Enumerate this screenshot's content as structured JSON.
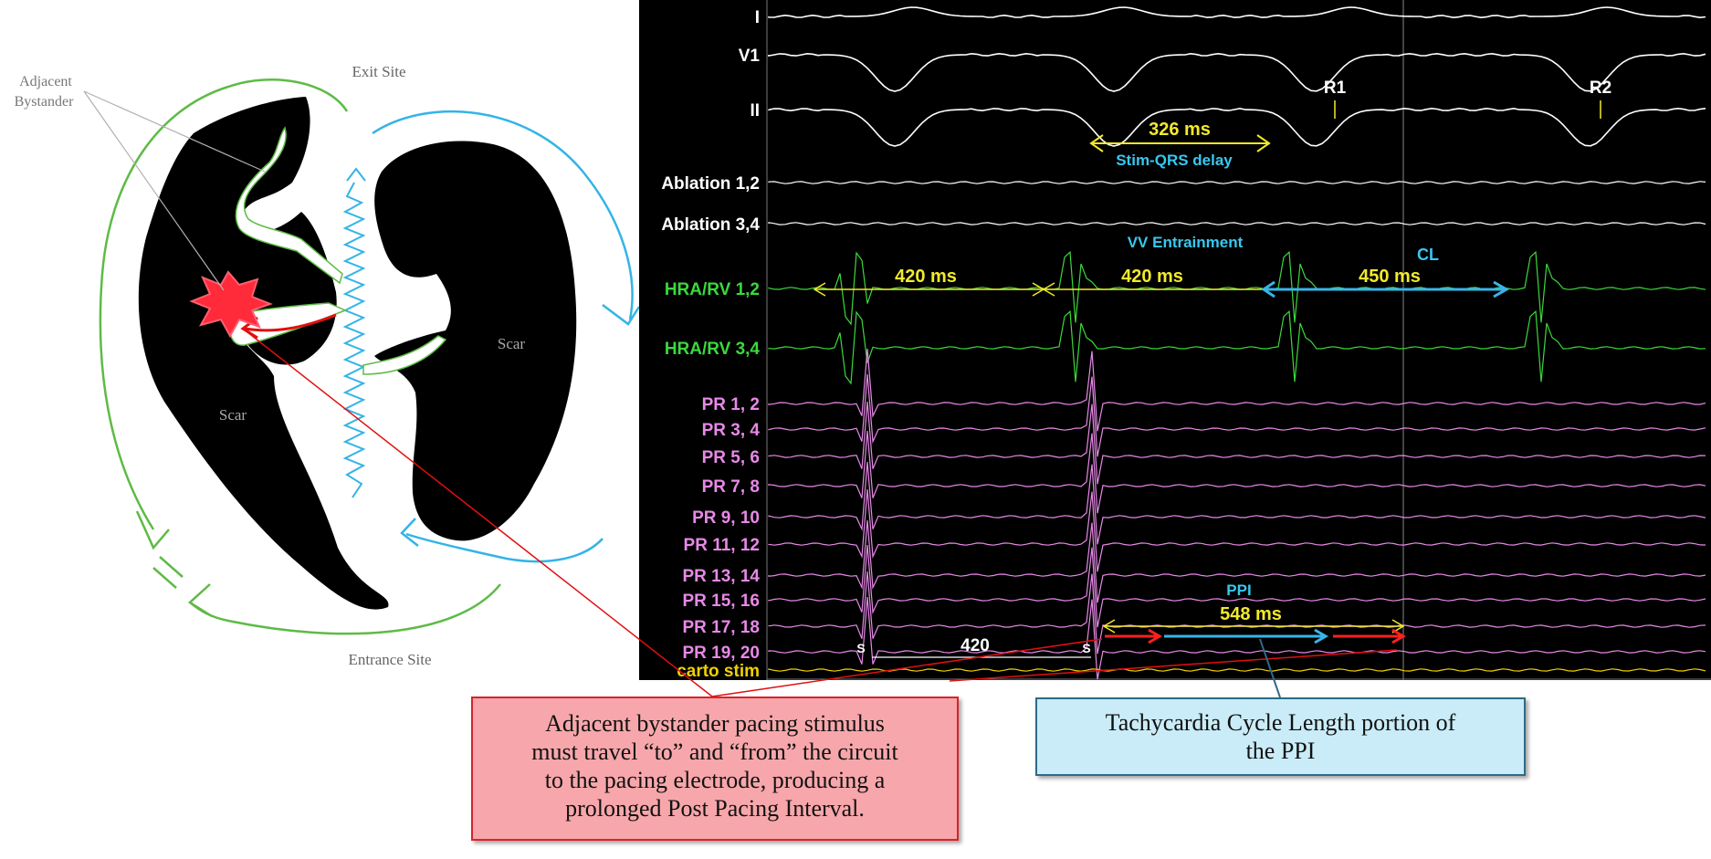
{
  "diagram": {
    "labels": {
      "adjacent_line1": "Adjacent",
      "adjacent_line2": "Bystander",
      "exit_site": "Exit Site",
      "entrance_site": "Entrance Site",
      "scar_left": "Scar",
      "scar_right": "Scar"
    },
    "colors": {
      "circuit_green": "#5dbb46",
      "circuit_blue": "#33b4e6",
      "scar": "#000000",
      "pacing_star": "#ff2a3a"
    }
  },
  "tracing": {
    "channel_labels": [
      {
        "key": "I",
        "color": "#ffffff"
      },
      {
        "key": "V1",
        "color": "#ffffff"
      },
      {
        "key": "II",
        "color": "#ffffff"
      },
      {
        "key": "Ablation 1,2",
        "color": "#ffffff"
      },
      {
        "key": "Ablation 3,4",
        "color": "#ffffff"
      },
      {
        "key": "HRA/RV 1,2",
        "color": "#3cd83c"
      },
      {
        "key": "HRA/RV 3,4",
        "color": "#3cd83c"
      },
      {
        "key": "PR 1, 2",
        "color": "#e889e8"
      },
      {
        "key": "PR 3, 4",
        "color": "#e889e8"
      },
      {
        "key": "PR 5, 6",
        "color": "#e889e8"
      },
      {
        "key": "PR 7, 8",
        "color": "#e889e8"
      },
      {
        "key": "PR 9, 10",
        "color": "#e889e8"
      },
      {
        "key": "PR 11, 12",
        "color": "#e889e8"
      },
      {
        "key": "PR 13, 14",
        "color": "#e889e8"
      },
      {
        "key": "PR 15, 16",
        "color": "#e889e8"
      },
      {
        "key": "PR 17, 18",
        "color": "#e889e8"
      },
      {
        "key": "PR 19, 20",
        "color": "#e889e8"
      },
      {
        "key": "carto stim",
        "color": "#f0d000"
      }
    ],
    "annotations": {
      "r1": "R1",
      "r2": "R2",
      "stim_qrs_value": "326 ms",
      "stim_qrs_label": "Stim-QRS delay",
      "vv_entrainment": "VV Entrainment",
      "interval1": "420 ms",
      "interval2": "420 ms",
      "cl_label": "CL",
      "cl_value": "450 ms",
      "ppi_label": "PPI",
      "ppi_value": "548 ms",
      "stim_420": "420",
      "s_label1": "S",
      "s_label2": "S"
    },
    "colors": {
      "background": "#000000",
      "measure_yellow": "#f2ea2b",
      "label_cyan": "#37c8f0",
      "arrow_red": "#ff2020",
      "arrow_blue": "#3ab4e8"
    }
  },
  "callouts": {
    "left_lines": [
      "Adjacent bystander pacing stimulus",
      "must travel “to” and “from” the circuit",
      "to the pacing electrode, producing a",
      "prolonged Post Pacing Interval."
    ],
    "right_lines": [
      "Tachycardia Cycle Length portion of",
      "the PPI"
    ]
  }
}
